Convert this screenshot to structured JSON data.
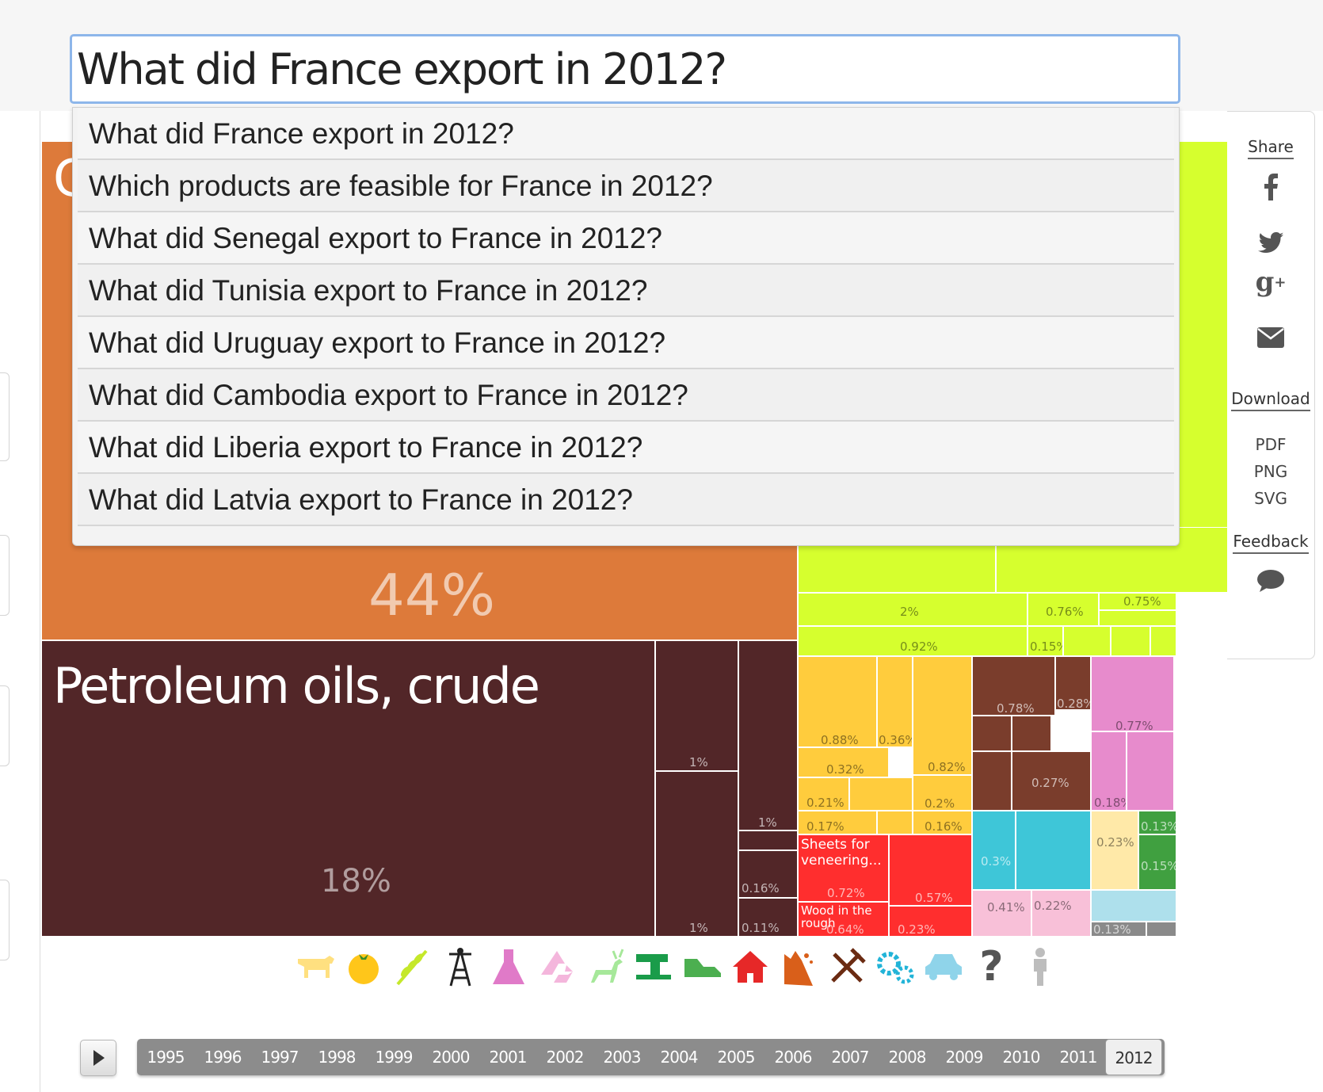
{
  "search": {
    "value": "What did France export in 2012?"
  },
  "suggestions": [
    "What did France export in 2012?",
    "Which products are feasible for France in 2012?",
    "What did Senegal export to France in 2012?",
    "What did Tunisia export to France in 2012?",
    "What did Uruguay export to France in 2012?",
    "What did Cambodia export to France in 2012?",
    "What did Liberia export to France in 2012?",
    "What did Latvia export to France in 2012?"
  ],
  "treemap": {
    "orange_partial_letter": "G",
    "orange_pct": "44%",
    "petroleum_title": "Petroleum oils, crude",
    "petroleum_pct": "18%",
    "labels": {
      "veneering": "Sheets for veneering...",
      "wood": "Wood in the rough"
    },
    "pcts": {
      "p1a": "1%",
      "p1b": "1%",
      "p1c": "1%",
      "p016": "0.16%",
      "p011": "0.11%",
      "g2": "2%",
      "g076": "0.76%",
      "g075": "0.75%",
      "g092": "0.92%",
      "g015": "0.15%",
      "y088": "0.88%",
      "y036": "0.36%",
      "y032": "0.32%",
      "y082": "0.82%",
      "y021": "0.21%",
      "y02": "0.2%",
      "y017": "0.17%",
      "y016": "0.16%",
      "b078": "0.78%",
      "b028": "0.28%",
      "b027": "0.27%",
      "m077": "0.77%",
      "m018": "0.18%",
      "r072": "0.72%",
      "r057": "0.57%",
      "r064": "0.64%",
      "r023": "0.23%",
      "c03": "0.3%",
      "c023": "0.23%",
      "c013a": "0.13%",
      "c015": "0.15%",
      "k041": "0.41%",
      "k022": "0.22%",
      "s013": "0.13%"
    }
  },
  "sidebar": {
    "share_label": "Share",
    "download_label": "Download",
    "pdf": "PDF",
    "png": "PNG",
    "svg": "SVG",
    "feedback_label": "Feedback"
  },
  "categories": [
    "animal-icon",
    "vegetable-icon",
    "grain-icon",
    "oil-rig-icon",
    "chemicals-icon",
    "recycle-icon",
    "deer-icon",
    "sewing-machine-icon",
    "shoe-icon",
    "house-icon",
    "stone-icon",
    "tools-icon",
    "gears-icon",
    "car-icon",
    "question-icon",
    "misc-icon"
  ],
  "timeline": {
    "years": [
      "1995",
      "1996",
      "1997",
      "1998",
      "1999",
      "2000",
      "2001",
      "2002",
      "2003",
      "2004",
      "2005",
      "2006",
      "2007",
      "2008",
      "2009",
      "2010",
      "2011",
      "2012"
    ],
    "selected": "2012"
  },
  "colors": {
    "orange": "#dd7a3a",
    "petroleum": "#522628",
    "lime": "#d6ff2e",
    "yellow": "#ffcc3d",
    "brown": "#7a3d2c",
    "pink": "#e78bcc",
    "red": "#ff2e2e",
    "cyan": "#3ec6d8",
    "green": "#40a040",
    "lightpink": "#f8c0d8",
    "lightblue": "#aee0ec",
    "cream": "#ffe9a8",
    "gray": "#8a8a8a"
  }
}
